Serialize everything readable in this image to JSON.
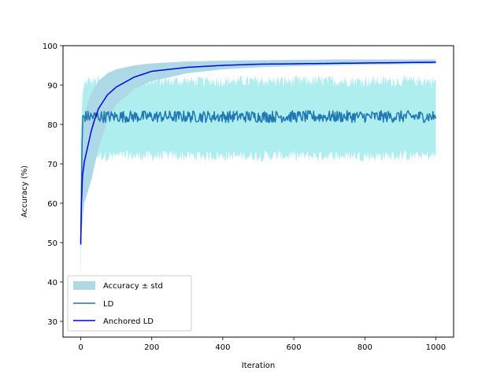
{
  "chart_data": {
    "type": "line",
    "xlabel": "Iteration",
    "ylabel": "Accuracy (%)",
    "xlim": [
      -50,
      1050
    ],
    "ylim": [
      26,
      100
    ],
    "x_ticks": [
      0,
      200,
      400,
      600,
      800,
      1000
    ],
    "y_ticks": [
      30,
      40,
      50,
      60,
      70,
      80,
      90,
      100
    ],
    "x_tick_labels": [
      "0",
      "200",
      "400",
      "600",
      "800",
      "1000"
    ],
    "y_tick_labels": [
      "30",
      "40",
      "50",
      "60",
      "70",
      "80",
      "90",
      "100"
    ],
    "grid": false,
    "legend_position": "lower-left",
    "legend": [
      "Accuracy ± std",
      "LD",
      "Anchored LD"
    ],
    "series": [
      {
        "name": "Accuracy ± std",
        "kind": "band",
        "description_of": "LD",
        "color": "#afeeee",
        "x": [
          0,
          5,
          10,
          20,
          50,
          100,
          200,
          300,
          400,
          500,
          600,
          700,
          800,
          900,
          1000
        ],
        "lower": [
          40,
          70,
          72,
          72,
          72,
          72,
          72,
          72,
          72,
          72,
          72,
          72,
          72,
          72,
          72
        ],
        "upper": [
          76,
          88,
          90,
          91,
          91,
          91,
          91,
          91,
          91,
          91,
          91,
          91,
          91,
          91,
          91
        ]
      },
      {
        "name": "Accuracy ± std",
        "kind": "band",
        "description_of": "Anchored LD",
        "color": "#add8e6",
        "x": [
          0,
          5,
          10,
          20,
          30,
          50,
          75,
          100,
          150,
          200,
          300,
          400,
          500,
          600,
          700,
          800,
          900,
          1000
        ],
        "lower": [
          48,
          56,
          60,
          63,
          66,
          74,
          81,
          85,
          89,
          91,
          93,
          94,
          94.5,
          94.8,
          95,
          95.2,
          95.3,
          95.4
        ],
        "upper": [
          52,
          79,
          82,
          86,
          88,
          91,
          93,
          94,
          95,
          95.5,
          96,
          96.2,
          96.3,
          96.4,
          96.5,
          96.5,
          96.5,
          96.5
        ]
      },
      {
        "name": "LD",
        "kind": "line",
        "color": "#1f77b4",
        "x": [
          0,
          5,
          10,
          1000
        ],
        "y": [
          50,
          82,
          82,
          82
        ],
        "noise_amplitude": 1.5
      },
      {
        "name": "Anchored LD",
        "kind": "line",
        "color": "#0000ff",
        "x": [
          0,
          2,
          5,
          10,
          20,
          30,
          40,
          50,
          75,
          100,
          150,
          200,
          300,
          400,
          500,
          600,
          700,
          800,
          900,
          1000
        ],
        "y": [
          49.5,
          60,
          67,
          70.5,
          74.5,
          78.5,
          81.5,
          84,
          87.5,
          89.5,
          92,
          93.5,
          94.5,
          95,
          95.3,
          95.4,
          95.5,
          95.6,
          95.7,
          95.8
        ]
      }
    ]
  }
}
